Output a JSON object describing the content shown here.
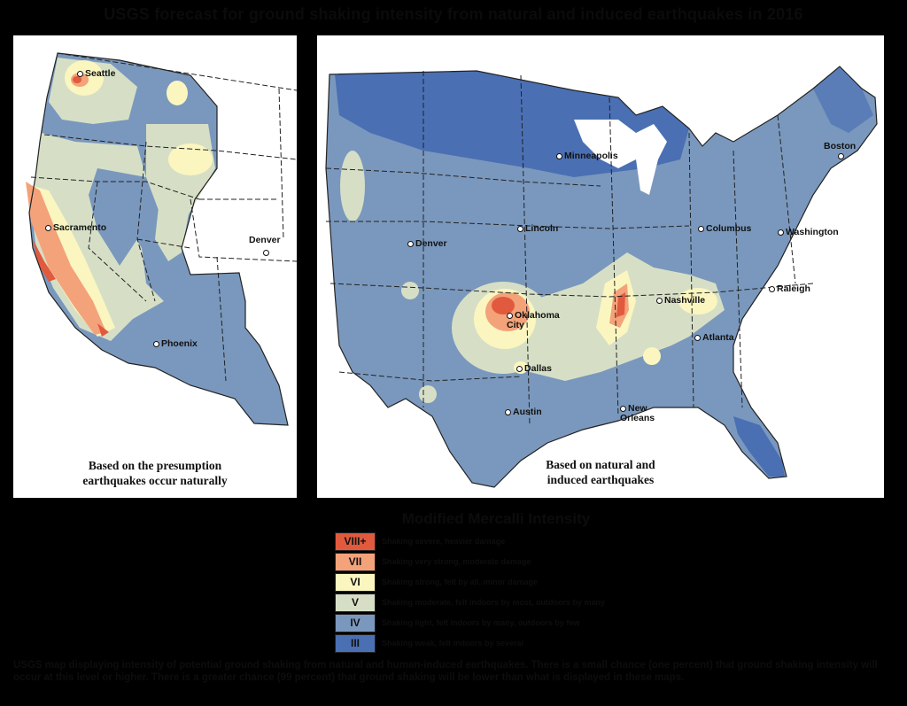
{
  "title": "USGS forecast for ground shaking intensity from natural and induced earthquakes in 2016",
  "left_map": {
    "caption": "Based on the presumption\nearthquakes occur naturally",
    "cities": [
      "Seattle",
      "Sacramento",
      "Denver",
      "Phoenix"
    ]
  },
  "right_map": {
    "caption": "Based on natural and\ninduced earthquakes",
    "cities": [
      "Minneapolis",
      "Boston",
      "Denver",
      "Lincoln",
      "Columbus",
      "Washington",
      "Oklahoma\nCity",
      "Nashville",
      "Raleigh",
      "Atlanta",
      "Dallas",
      "Austin",
      "New\nOrleans"
    ]
  },
  "legend": {
    "title": "Modified Mercalli Intensity",
    "items": [
      {
        "level": "VIII+",
        "description": "Shaking severe, heavier damage",
        "color": "#e15a3d"
      },
      {
        "level": "VII",
        "description": "Shaking very strong, moderate damage",
        "color": "#f3a27a"
      },
      {
        "level": "VI",
        "description": "Shaking strong, felt by all, minor damage",
        "color": "#fbf6c0"
      },
      {
        "level": "V",
        "description": "Shaking moderate, felt indoors by most, outdoors by many",
        "color": "#d6dfc6"
      },
      {
        "level": "IV",
        "description": "Shaking light, felt indoors by many, outdoors by few",
        "color": "#7a98bd"
      },
      {
        "level": "III",
        "description": "Shaking weak, felt indoors by several",
        "color": "#4a6fb3"
      }
    ]
  },
  "footnote": "USGS map displaying intensity of potential ground shaking from natural and human-induced earthquakes. There is a small chance (one percent) that ground shaking intensity will occur at this level or higher. There is a greater chance (99 percent) that ground shaking will be lower than what is displayed in these maps."
}
